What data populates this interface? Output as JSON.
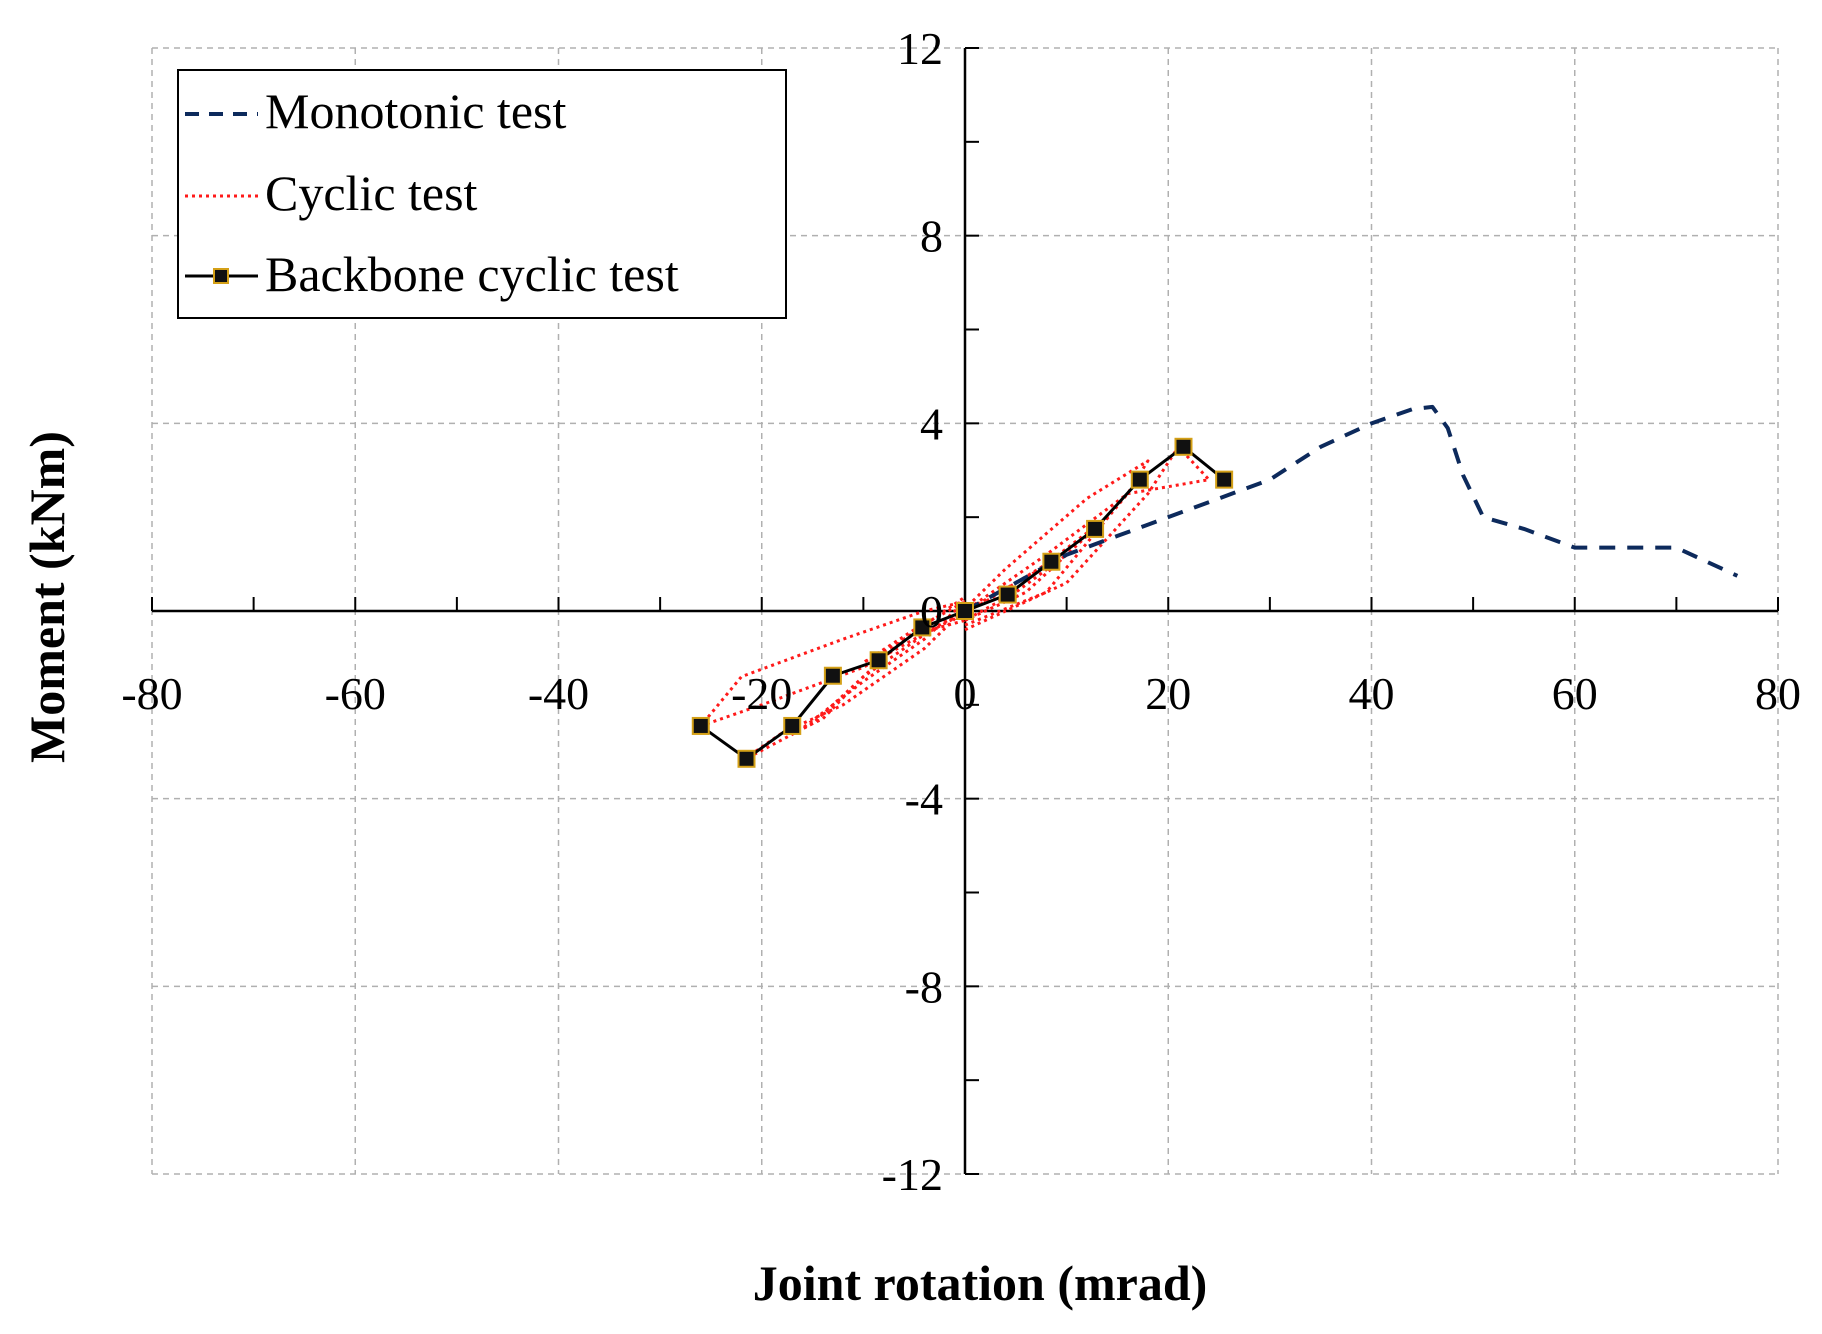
{
  "chart_data": {
    "type": "line",
    "title": "",
    "xlabel": "Joint rotation (mrad)",
    "ylabel": "Moment (kNm)",
    "xlim": [
      -80,
      80
    ],
    "ylim": [
      -12,
      12
    ],
    "xticks": [
      -80,
      -60,
      -40,
      -20,
      0,
      20,
      40,
      60,
      80
    ],
    "yticks": [
      -12,
      -8,
      -4,
      0,
      4,
      8,
      12
    ],
    "grid": true,
    "legend_position": "top-left",
    "colors": {
      "monotonic": "#0d2a5c",
      "cyclic": "#ff1a1a",
      "backbone": "#000000",
      "marker_fill": "#111111",
      "marker_edge": "#d4a017",
      "grid": "#b0b0b0"
    },
    "series": [
      {
        "name": "Monotonic test",
        "style": "dashed",
        "x": [
          0,
          5,
          10,
          15,
          20,
          25,
          30,
          35,
          40,
          44,
          46,
          47.5,
          49,
          51,
          55,
          60,
          65,
          70,
          73,
          76
        ],
        "y": [
          0,
          0.6,
          1.2,
          1.6,
          2.0,
          2.4,
          2.8,
          3.5,
          4.0,
          4.3,
          4.35,
          3.9,
          2.9,
          2.0,
          1.75,
          1.35,
          1.35,
          1.35,
          1.05,
          0.75
        ]
      },
      {
        "name": "Cyclic test",
        "style": "dotted",
        "loops": [
          {
            "x": [
              0,
              5,
              10,
              5,
              0,
              -5,
              -10,
              -5,
              0
            ],
            "y": [
              0,
              0.6,
              1.2,
              0.4,
              -0.2,
              -0.5,
              -1.1,
              -0.4,
              0.2
            ]
          },
          {
            "x": [
              0,
              6,
              12,
              14,
              8,
              2,
              -4,
              -10,
              -14,
              -16,
              -10,
              -4,
              0
            ],
            "y": [
              -0.2,
              0.4,
              1.6,
              2.0,
              1.0,
              0.2,
              -0.5,
              -1.4,
              -2.3,
              -2.5,
              -1.5,
              -0.6,
              0.2
            ]
          },
          {
            "x": [
              0,
              8,
              16,
              18,
              12,
              4,
              -4,
              -12,
              -18,
              -22,
              -15,
              -6,
              0
            ],
            "y": [
              -0.3,
              0.4,
              2.5,
              3.2,
              2.4,
              0.9,
              -0.8,
              -2.0,
              -2.6,
              -3.2,
              -2.4,
              -0.6,
              0.3
            ]
          },
          {
            "x": [
              0,
              10,
              18,
              21,
              24,
              16,
              8,
              0,
              -10,
              -20,
              -26,
              -22,
              -12,
              -4,
              0
            ],
            "y": [
              -0.4,
              0.6,
              2.5,
              3.5,
              2.8,
              2.5,
              1.2,
              0,
              -1.2,
              -2.0,
              -2.45,
              -1.4,
              -0.6,
              0,
              0.2
            ]
          }
        ]
      },
      {
        "name": "Backbone cyclic test",
        "style": "solid-square-markers",
        "x": [
          -26,
          -21.5,
          -17,
          -13,
          -8.5,
          -4.2,
          0,
          4.2,
          8.5,
          12.8,
          17.2,
          21.5,
          25.5
        ],
        "y": [
          -2.45,
          -3.15,
          -2.45,
          -1.38,
          -1.05,
          -0.35,
          0,
          0.35,
          1.05,
          1.75,
          2.8,
          3.5,
          2.8
        ]
      }
    ]
  }
}
